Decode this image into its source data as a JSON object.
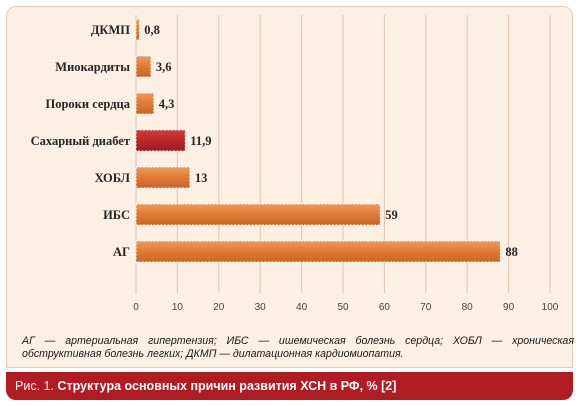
{
  "chart_data": {
    "type": "bar",
    "orientation": "horizontal",
    "categories": [
      "АГ",
      "ИБС",
      "ХОБЛ",
      "Сахарный диабет",
      "Пороки сердца",
      "Миокардиты",
      "ДКМП"
    ],
    "values": [
      88,
      59,
      13,
      11.9,
      4.3,
      3.6,
      0.8
    ],
    "value_labels": [
      "88",
      "59",
      "13",
      "11,9",
      "4,3",
      "3,6",
      "0,8"
    ],
    "xticks": [
      "0",
      "10",
      "20",
      "30",
      "40",
      "50",
      "60",
      "70",
      "80",
      "90",
      "100"
    ],
    "xlim": [
      0,
      100
    ],
    "grid": true,
    "bar_color": "#e07a35",
    "highlight_color": "#b8282b",
    "highlight_category": "Сахарный диабет",
    "xlabel": "",
    "ylabel": ""
  },
  "note": "АГ — артериальная гипертензия; ИБС — ишемическая болезнь сердца; ХОБЛ — хроническая обструктивная болезнь легких; ДКМП — дилатационная кардиомиопатия.",
  "caption": {
    "prefix": "Рис. 1. ",
    "title": "Структура основных причин развития ХСН в РФ, % [2]"
  }
}
